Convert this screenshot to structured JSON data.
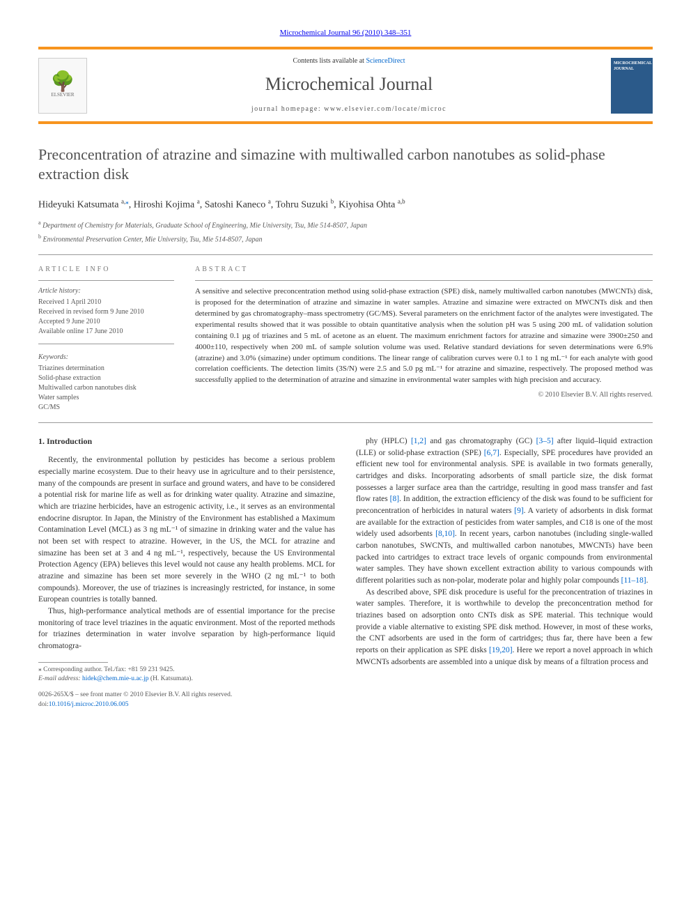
{
  "header": {
    "citation_link": "Microchemical Journal 96 (2010) 348–351",
    "contents_prefix": "Contents lists available at ",
    "contents_link": "ScienceDirect",
    "journal_name": "Microchemical Journal",
    "homepage_prefix": "journal homepage: ",
    "homepage": "www.elsevier.com/locate/microc",
    "elsevier_label": "ELSEVIER",
    "cover_title": "MICROCHEMICAL JOURNAL"
  },
  "article": {
    "title": "Preconcentration of atrazine and simazine with multiwalled carbon nanotubes as solid-phase extraction disk",
    "authors_html": "Hideyuki Katsumata <sup>a,</sup><a href='#'><sup>⁎</sup></a>, Hiroshi Kojima <sup>a</sup>, Satoshi Kaneco <sup>a</sup>, Tohru Suzuki <sup>b</sup>, Kiyohisa Ohta <sup>a,b</sup>",
    "affiliations": [
      "Department of Chemistry for Materials, Graduate School of Engineering, Mie University, Tsu, Mie 514-8507, Japan",
      "Environmental Preservation Center, Mie University, Tsu, Mie 514-8507, Japan"
    ],
    "affil_sups": [
      "a",
      "b"
    ]
  },
  "meta": {
    "info_heading": "ARTICLE INFO",
    "history_label": "Article history:",
    "history": [
      "Received 1 April 2010",
      "Received in revised form 9 June 2010",
      "Accepted 9 June 2010",
      "Available online 17 June 2010"
    ],
    "keywords_label": "Keywords:",
    "keywords": [
      "Triazines determination",
      "Solid-phase extraction",
      "Multiwalled carbon nanotubes disk",
      "Water samples",
      "GC/MS"
    ],
    "abstract_heading": "ABSTRACT",
    "abstract": "A sensitive and selective preconcentration method using solid-phase extraction (SPE) disk, namely multiwalled carbon nanotubes (MWCNTs) disk, is proposed for the determination of atrazine and simazine in water samples. Atrazine and simazine were extracted on MWCNTs disk and then determined by gas chromatography–mass spectrometry (GC/MS). Several parameters on the enrichment factor of the analytes were investigated. The experimental results showed that it was possible to obtain quantitative analysis when the solution pH was 5 using 200 mL of validation solution containing 0.1 µg of triazines and 5 mL of acetone as an eluent. The maximum enrichment factors for atrazine and simazine were 3900±250 and 4000±110, respectively when 200 mL of sample solution volume was used. Relative standard deviations for seven determinations were 6.9% (atrazine) and 3.0% (simazine) under optimum conditions. The linear range of calibration curves were 0.1 to 1 ng mL⁻¹ for each analyte with good correlation coefficients. The detection limits (3S/N) were 2.5 and 5.0 pg mL⁻¹ for atrazine and simazine, respectively. The proposed method was successfully applied to the determination of atrazine and simazine in environmental water samples with high precision and accuracy.",
    "copyright": "© 2010 Elsevier B.V. All rights reserved."
  },
  "body": {
    "section_heading": "1. Introduction",
    "col1": [
      "Recently, the environmental pollution by pesticides has become a serious problem especially marine ecosystem. Due to their heavy use in agriculture and to their persistence, many of the compounds are present in surface and ground waters, and have to be considered a potential risk for marine life as well as for drinking water quality. Atrazine and simazine, which are triazine herbicides, have an estrogenic activity, i.e., it serves as an environmental endocrine disruptor. In Japan, the Ministry of the Environment has established a Maximum Contamination Level (MCL) as 3 ng mL⁻¹ of simazine in drinking water and the value has not been set with respect to atrazine. However, in the US, the MCL for atrazine and simazine has been set at 3 and 4 ng mL⁻¹, respectively, because the US Environmental Protection Agency (EPA) believes this level would not cause any health problems. MCL for atrazine and simazine has been set more severely in the WHO (2 ng mL⁻¹ to both compounds). Moreover, the use of triazines is increasingly restricted, for instance, in some European countries is totally banned.",
      "Thus, high-performance analytical methods are of essential importance for the precise monitoring of trace level triazines in the aquatic environment. Most of the reported methods for triazines determination in water involve separation by high-performance liquid chromatogra-"
    ],
    "col2": [
      "phy (HPLC) [1,2] and gas chromatography (GC) [3–5] after liquid–liquid extraction (LLE) or solid-phase extraction (SPE) [6,7]. Especially, SPE procedures have provided an efficient new tool for environmental analysis. SPE is available in two formats generally, cartridges and disks. Incorporating adsorbents of small particle size, the disk format possesses a larger surface area than the cartridge, resulting in good mass transfer and fast flow rates [8]. In addition, the extraction efficiency of the disk was found to be sufficient for preconcentration of herbicides in natural waters [9]. A variety of adsorbents in disk format are available for the extraction of pesticides from water samples, and C18 is one of the most widely used adsorbents [8,10]. In recent years, carbon nanotubes (including single-walled carbon nanotubes, SWCNTs, and multiwalled carbon nanotubes, MWCNTs) have been packed into cartridges to extract trace levels of organic compounds from environmental water samples. They have shown excellent extraction ability to various compounds with different polarities such as non-polar, moderate polar and highly polar compounds [11–18].",
      "As described above, SPE disk procedure is useful for the preconcentration of triazines in water samples. Therefore, it is worthwhile to develop the preconcentration method for triazines based on adsorption onto CNTs disk as SPE material. This technique would provide a viable alternative to existing SPE disk method. However, in most of these works, the CNT adsorbents are used in the form of cartridges; thus far, there have been a few reports on their application as SPE disks [19,20]. Here we report a novel approach in which MWCNTs adsorbents are assembled into a unique disk by means of a filtration process and"
    ],
    "refs_col2": [
      "[1,2]",
      "[3–5]",
      "[6,7]",
      "[8]",
      "[9]",
      "[8,10]",
      "[11–18]",
      "[19,20]"
    ]
  },
  "footer": {
    "corr": "⁎ Corresponding author. Tel./fax: +81 59 231 9425.",
    "email_label": "E-mail address: ",
    "email": "hidek@chem.mie-u.ac.jp",
    "email_suffix": " (H. Katsumata).",
    "issn_line": "0026-265X/$ – see front matter © 2010 Elsevier B.V. All rights reserved.",
    "doi_label": "doi:",
    "doi": "10.1016/j.microc.2010.06.005"
  },
  "colors": {
    "accent_orange": "#f7941e",
    "link_blue": "#0066cc",
    "text_gray": "#333333",
    "cover_blue": "#2b5a8a"
  }
}
